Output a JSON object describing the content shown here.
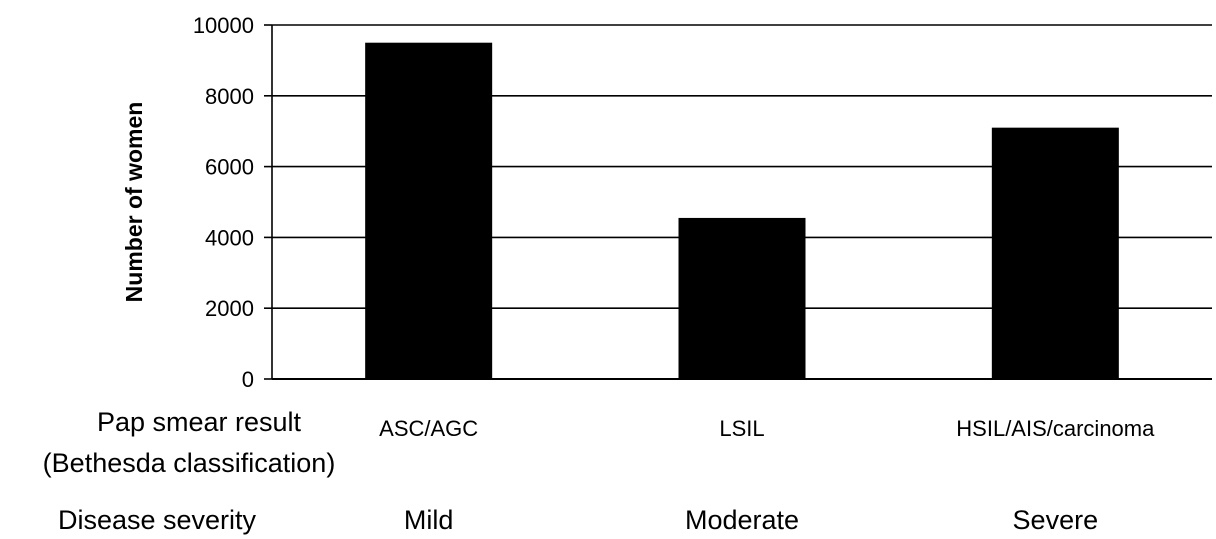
{
  "chart_data": {
    "type": "bar",
    "categories": [
      "ASC/AGC",
      "LSIL",
      "HSIL/AIS/carcinoma"
    ],
    "values": [
      9500,
      4550,
      7100
    ],
    "ylabel": "Number of women",
    "ylim": [
      0,
      10000
    ],
    "yticks": [
      0,
      2000,
      4000,
      6000,
      8000,
      10000
    ],
    "grid": true,
    "bar_color": "#000000"
  },
  "category_row": {
    "label_line1": "Pap smear result",
    "label_line2": "(Bethesda classification)"
  },
  "severity_row": {
    "label": "Disease severity",
    "values": [
      "Mild",
      "Moderate",
      "Severe"
    ]
  }
}
